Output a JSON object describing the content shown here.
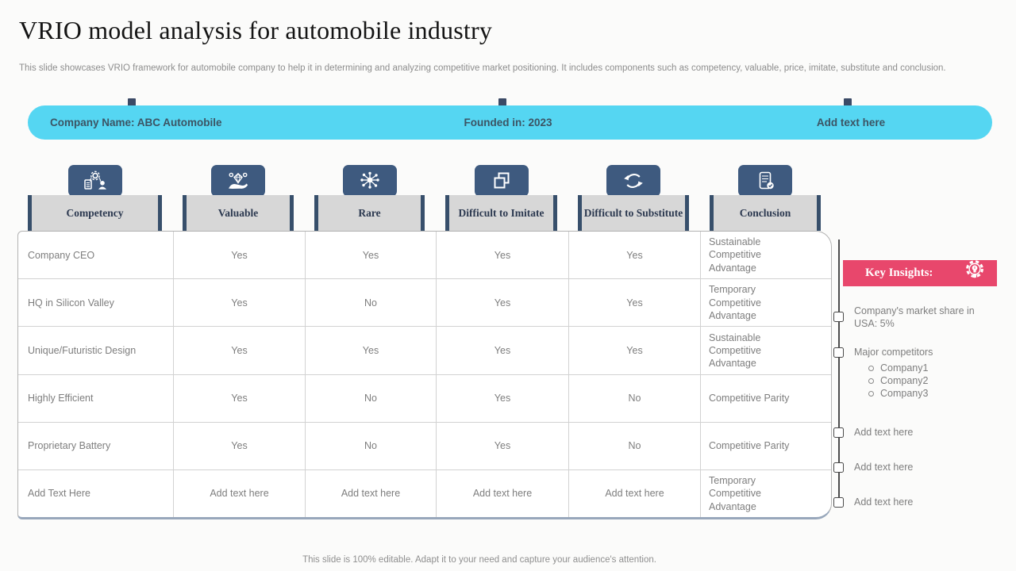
{
  "colors": {
    "banner_blue": "#55d6f2",
    "icon_navy": "#3e5a7f",
    "bar_navy": "#374f6b",
    "header_gray": "#d7d7d7",
    "insight_pink": "#e8476c",
    "body_text_gray": "#7e7e7e"
  },
  "header": {
    "title": "VRIO model analysis for automobile industry",
    "subtitle": "This slide showcases VRIO framework for automobile company to help it in determining and analyzing competitive market positioning. It includes components such as competency, valuable, price, imitate, substitute and conclusion."
  },
  "banner": {
    "items": [
      {
        "label": "Company Name: ABC Automobile"
      },
      {
        "label": "Founded in: 2023"
      },
      {
        "label": "Add text here"
      }
    ]
  },
  "columns": [
    {
      "label": "Competency",
      "icon": "person-gear-clipboard-icon"
    },
    {
      "label": "Valuable",
      "icon": "hand-diamond-icon"
    },
    {
      "label": "Rare",
      "icon": "network-hub-icon"
    },
    {
      "label": "Difficult to Imitate",
      "icon": "copy-squares-icon"
    },
    {
      "label": "Difficult to Substitute",
      "icon": "sync-arrows-icon"
    },
    {
      "label": "Conclusion",
      "icon": "checklist-check-icon"
    }
  ],
  "table": {
    "rows": [
      [
        "Company CEO",
        "Yes",
        "Yes",
        "Yes",
        "Yes",
        "Sustainable Competitive Advantage"
      ],
      [
        "HQ in Silicon Valley",
        "Yes",
        "No",
        "Yes",
        "Yes",
        "Temporary Competitive Advantage"
      ],
      [
        "Unique/Futuristic Design",
        "Yes",
        "Yes",
        "Yes",
        "Yes",
        "Sustainable Competitive Advantage"
      ],
      [
        "Highly Efficient",
        "Yes",
        "No",
        "Yes",
        "No",
        "Competitive Parity"
      ],
      [
        "Proprietary Battery",
        "Yes",
        "No",
        "Yes",
        "No",
        "Competitive Parity"
      ],
      [
        "Add Text Here",
        "Add text here",
        "Add text here",
        "Add text here",
        "Add text here",
        "Temporary Competitive Advantage"
      ]
    ]
  },
  "key_insights": {
    "title": "Key Insights:",
    "icon": "bulb-gear-icon",
    "items": [
      {
        "text": "Company's market share in USA: 5%",
        "subitems": []
      },
      {
        "text": "Major competitors",
        "subitems": [
          "Company1",
          "Company2",
          "Company3"
        ]
      },
      {
        "text": "Add text here",
        "subitems": []
      },
      {
        "text": "Add text here",
        "subitems": []
      },
      {
        "text": "Add text here",
        "subitems": []
      }
    ]
  },
  "footer": {
    "note": "This slide is 100% editable. Adapt it to your need and capture your audience's attention."
  }
}
